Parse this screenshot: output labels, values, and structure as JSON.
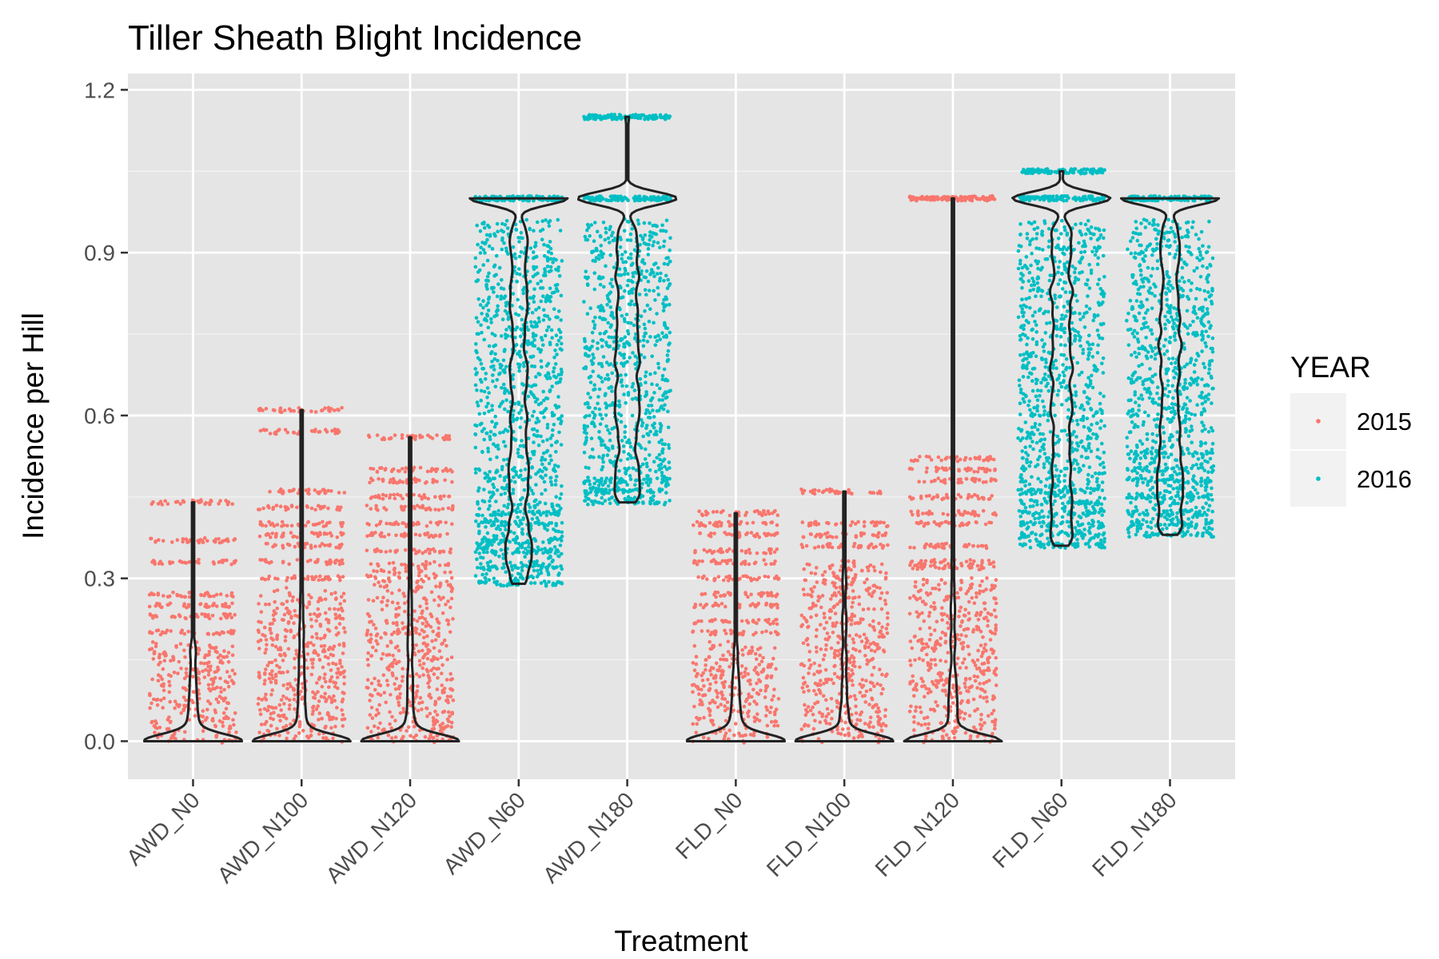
{
  "chart_data": {
    "type": "violin",
    "title": "Tiller Sheath Blight Incidence",
    "xlabel": "Treatment",
    "ylabel": "Incidence per Hill",
    "ylim": [
      -0.07,
      1.23
    ],
    "yticks": [
      0.0,
      0.3,
      0.6,
      0.9,
      1.2
    ],
    "ytick_labels": [
      "0.0",
      "0.3",
      "0.6",
      "0.9",
      "1.2"
    ],
    "grid": true,
    "panel_background": "#e5e5e5",
    "legend": {
      "title": "YEAR",
      "position": "right",
      "entries": [
        {
          "label": "2015",
          "color": "#f8766d"
        },
        {
          "label": "2016",
          "color": "#00bfc4"
        }
      ]
    },
    "categories": [
      "AWD_N0",
      "AWD_N100",
      "AWD_N120",
      "AWD_N60",
      "AWD_N180",
      "FLD_N0",
      "FLD_N100",
      "FLD_N120",
      "FLD_N60",
      "FLD_N180"
    ],
    "groups": [
      {
        "treatment": "AWD_N0",
        "year": "2015",
        "min": 0.0,
        "max": 0.44,
        "dense_max": 0.18,
        "levels": [
          0.2,
          0.23,
          0.25,
          0.27,
          0.33,
          0.37,
          0.44
        ]
      },
      {
        "treatment": "AWD_N100",
        "year": "2015",
        "min": 0.0,
        "max": 0.61,
        "dense_max": 0.28,
        "levels": [
          0.3,
          0.33,
          0.36,
          0.38,
          0.4,
          0.43,
          0.46,
          0.57,
          0.61
        ]
      },
      {
        "treatment": "AWD_N120",
        "year": "2015",
        "min": 0.0,
        "max": 0.56,
        "dense_max": 0.33,
        "levels": [
          0.35,
          0.38,
          0.4,
          0.43,
          0.45,
          0.48,
          0.5,
          0.56
        ]
      },
      {
        "treatment": "AWD_N60",
        "year": "2016",
        "min": 0.29,
        "max": 1.0,
        "dense_max": 0.96,
        "levels": [
          0.29,
          0.32,
          0.35,
          0.37,
          0.4,
          0.42,
          1.0
        ]
      },
      {
        "treatment": "AWD_N180",
        "year": "2016",
        "min": 0.44,
        "max": 1.15,
        "dense_max": 0.96,
        "levels": [
          0.44,
          0.46,
          0.48,
          1.0,
          1.15
        ]
      },
      {
        "treatment": "FLD_N0",
        "year": "2015",
        "min": 0.0,
        "max": 0.42,
        "dense_max": 0.18,
        "levels": [
          0.2,
          0.22,
          0.25,
          0.27,
          0.3,
          0.33,
          0.35,
          0.38,
          0.4,
          0.42
        ]
      },
      {
        "treatment": "FLD_N100",
        "year": "2015",
        "min": 0.0,
        "max": 0.46,
        "dense_max": 0.33,
        "levels": [
          0.36,
          0.38,
          0.4,
          0.46
        ]
      },
      {
        "treatment": "FLD_N120",
        "year": "2015",
        "min": 0.0,
        "max": 1.0,
        "dense_max": 0.3,
        "levels": [
          0.32,
          0.33,
          0.36,
          0.4,
          0.42,
          0.45,
          0.48,
          0.5,
          0.52,
          1.0
        ]
      },
      {
        "treatment": "FLD_N60",
        "year": "2016",
        "min": 0.36,
        "max": 1.05,
        "dense_max": 0.96,
        "levels": [
          0.36,
          0.38,
          0.4,
          0.42,
          0.44,
          0.46,
          1.0,
          1.05
        ]
      },
      {
        "treatment": "FLD_N180",
        "year": "2016",
        "min": 0.38,
        "max": 1.0,
        "dense_max": 0.96,
        "levels": [
          0.38,
          0.4,
          0.42,
          0.45,
          0.48,
          0.5,
          0.53,
          1.0
        ]
      }
    ]
  }
}
